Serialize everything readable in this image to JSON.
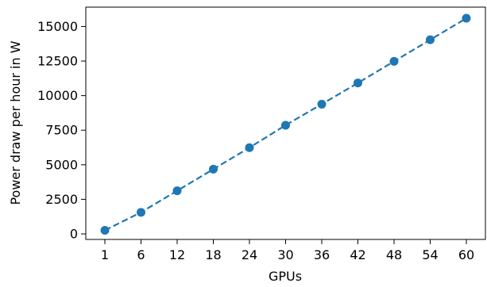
{
  "chart_data": {
    "type": "line",
    "title": "",
    "xlabel": "GPUs",
    "ylabel": "Power draw per hour in W",
    "categories": [
      "1",
      "6",
      "12",
      "18",
      "24",
      "30",
      "36",
      "42",
      "48",
      "54",
      "60"
    ],
    "series": [
      {
        "values": [
          260,
          1560,
          3120,
          4680,
          6240,
          7860,
          9380,
          10920,
          12480,
          14040,
          15600
        ],
        "color": "#1f77b4",
        "line_style": "dashed",
        "marker": "circle"
      }
    ],
    "ylim": [
      -400,
      16400
    ],
    "y_ticks": [
      0,
      2500,
      5000,
      7500,
      10000,
      12500,
      15000
    ],
    "y_tick_labels": [
      "0",
      "2500",
      "5000",
      "7500",
      "10000",
      "12500",
      "15000"
    ],
    "grid": false,
    "legend": false
  }
}
